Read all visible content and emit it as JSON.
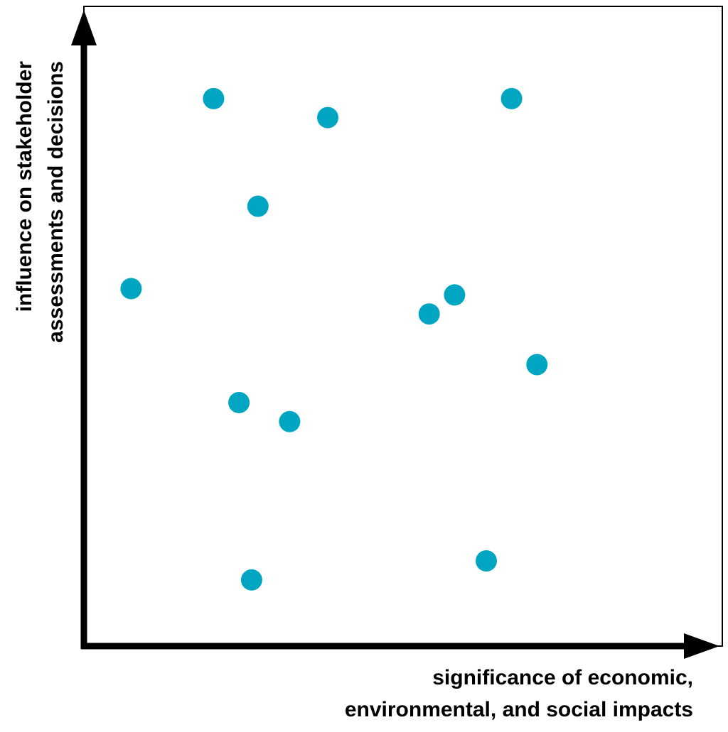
{
  "chart_data": {
    "type": "scatter",
    "title": "",
    "xlabel_lines": [
      "significance of economic,",
      "environmental, and social impacts"
    ],
    "ylabel_lines": [
      "influence on stakeholder",
      "assessments  and decisions"
    ],
    "xlim": [
      0,
      100
    ],
    "ylim": [
      0,
      100
    ],
    "tick_labels": false,
    "grid": false,
    "legend": "none",
    "series": [
      {
        "points": [
          {
            "x": 20,
            "y": 86
          },
          {
            "x": 67,
            "y": 86
          },
          {
            "x": 38,
            "y": 83
          },
          {
            "x": 27,
            "y": 69
          },
          {
            "x": 7,
            "y": 56
          },
          {
            "x": 58,
            "y": 55
          },
          {
            "x": 54,
            "y": 52
          },
          {
            "x": 71,
            "y": 44
          },
          {
            "x": 24,
            "y": 38
          },
          {
            "x": 32,
            "y": 35
          },
          {
            "x": 63,
            "y": 13
          },
          {
            "x": 26,
            "y": 10
          }
        ]
      }
    ],
    "colors": {
      "marker": "#00A6C1",
      "axis": "#000000",
      "frame": "#000000",
      "background": "#FFFFFF"
    }
  }
}
